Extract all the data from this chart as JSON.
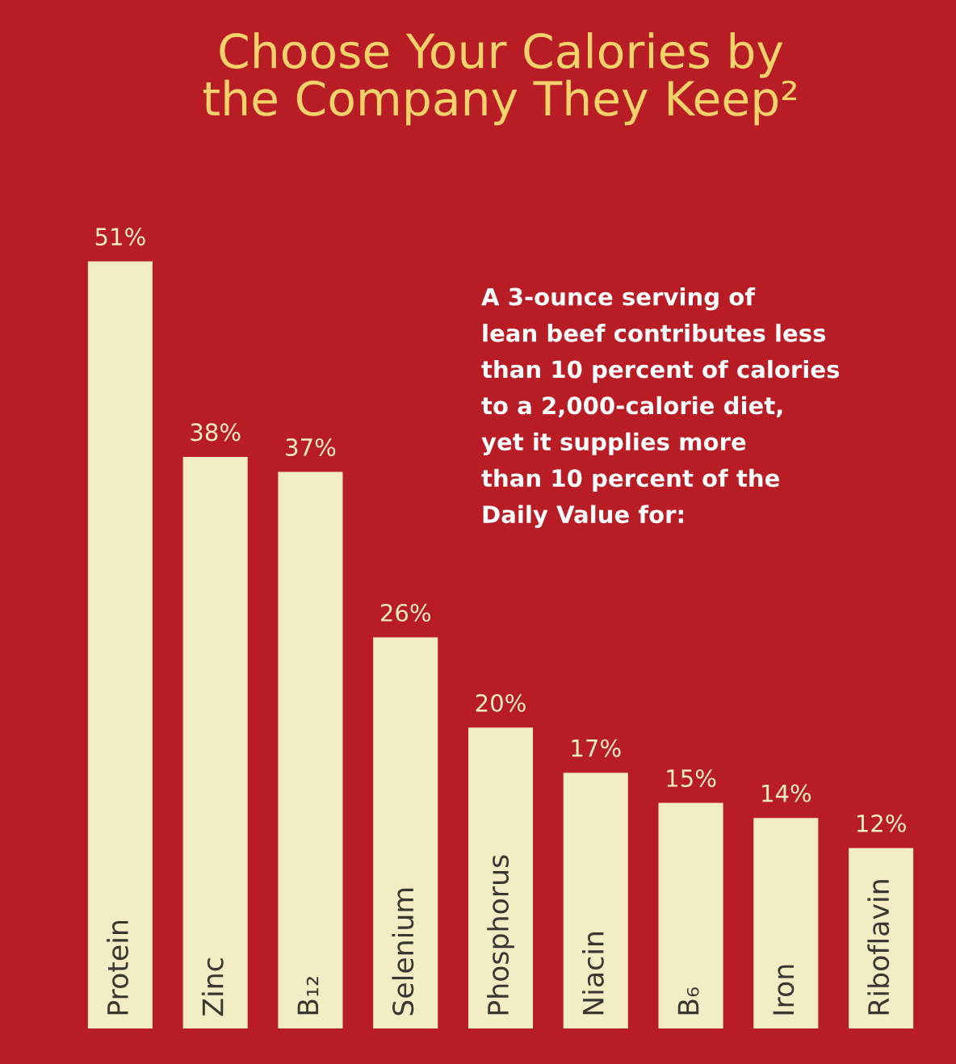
{
  "chart_data": {
    "type": "bar",
    "title": "Choose Your Calories by\nthe Company They Keep²",
    "categories": [
      "Protein",
      "Zinc",
      "B₁₂",
      "Selenium",
      "Phosphorus",
      "Niacin",
      "B₆",
      "Iron",
      "Riboflavin"
    ],
    "values": [
      51,
      38,
      37,
      26,
      20,
      17,
      15,
      14,
      12
    ],
    "value_labels": [
      "51%",
      "38%",
      "37%",
      "26%",
      "20%",
      "17%",
      "15%",
      "14%",
      "12%"
    ],
    "color": "#f3edc6",
    "tick_labels": false,
    "annotations": [
      "A 3-ounce serving of\nlean beef contributes less\nthan 10 percent of calories\nto a 2,000-calorie diet,\nyet it supplies more\nthan 10 percent of the\nDaily Value for:"
    ]
  }
}
